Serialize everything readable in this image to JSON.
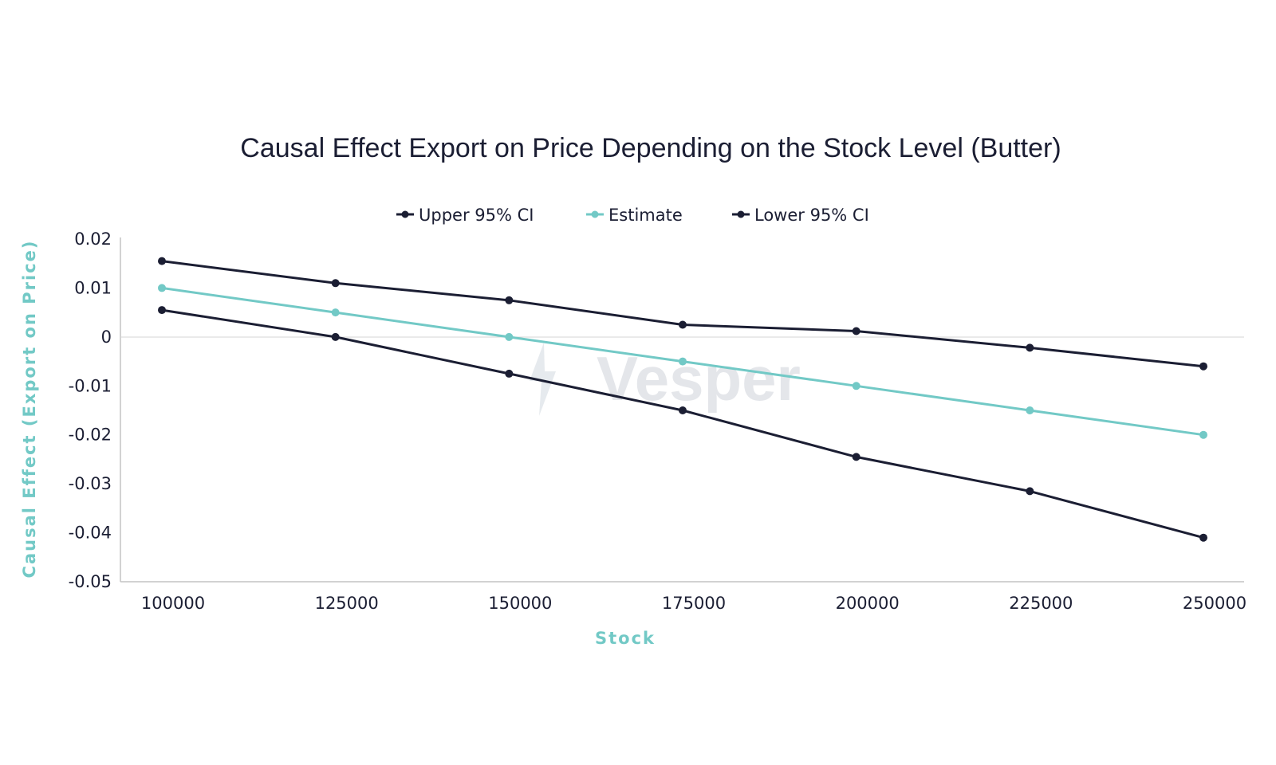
{
  "colors": {
    "dark": "#1b1e33",
    "accent": "#72c9c6",
    "axis": "#c4c4c4",
    "watermark": "#e4e6ea"
  },
  "watermark": {
    "text": "Vesper"
  },
  "chart_data": {
    "type": "line",
    "title": "Causal Effect Export on Price Depending on the Stock Level (Butter)",
    "xlabel": "Stock",
    "ylabel": "Causal Effect (Export on Price)",
    "x": [
      100000,
      125000,
      150000,
      175000,
      200000,
      225000,
      250000
    ],
    "x_tick_labels": [
      "100000",
      "125000",
      "150000",
      "175000",
      "200000",
      "225000",
      "250000"
    ],
    "ylim": [
      -0.05,
      0.02
    ],
    "y_ticks": [
      0.02,
      0.01,
      0,
      -0.01,
      -0.02,
      -0.03,
      -0.04,
      -0.05
    ],
    "y_tick_labels": [
      "0.02",
      "0.01",
      "0",
      "-0.01",
      "-0.02",
      "-0.03",
      "-0.04",
      "-0.05"
    ],
    "legend_position": "top-center",
    "grid": false,
    "series": [
      {
        "name": "Upper 95% CI",
        "color": "#1b1e33",
        "values": [
          0.0155,
          0.011,
          0.0075,
          0.0025,
          0.0012,
          -0.0022,
          -0.006
        ]
      },
      {
        "name": "Estimate",
        "color": "#72c9c6",
        "values": [
          0.01,
          0.005,
          0.0,
          -0.005,
          -0.01,
          -0.015,
          -0.02
        ]
      },
      {
        "name": "Lower 95% CI",
        "color": "#1b1e33",
        "values": [
          0.0055,
          0.0,
          -0.0075,
          -0.015,
          -0.0245,
          -0.0315,
          -0.041
        ]
      }
    ]
  }
}
